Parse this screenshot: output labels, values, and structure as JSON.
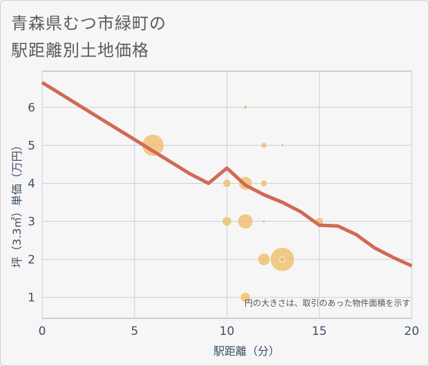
{
  "header": {
    "title": "青森県むつ市緑町の",
    "subtitle": "駅距離別土地価格"
  },
  "chart_data": {
    "type": "scatter",
    "title": "青森県むつ市緑町の駅距離別土地価格",
    "xlabel": "駅距離（分）",
    "ylabel": "坪（3.3㎡）単価（万円）",
    "xlim": [
      0,
      20
    ],
    "ylim": [
      0.45,
      6.95
    ],
    "x_ticks": [
      "0",
      "5",
      "10",
      "15",
      "20"
    ],
    "y_ticks": [
      "1",
      "2",
      "3",
      "4",
      "5",
      "6"
    ],
    "grid": true,
    "note": "円の大きさは、取引のあった物件面積を示す",
    "colors": {
      "bubble": "#efb960",
      "line": "#d06a55"
    },
    "points": [
      {
        "x": 6,
        "y": 5.0,
        "size": 3.2
      },
      {
        "x": 10,
        "y": 4.0,
        "size": 1.2
      },
      {
        "x": 10,
        "y": 3.0,
        "size": 1.4
      },
      {
        "x": 11,
        "y": 6.0,
        "size": 0.6
      },
      {
        "x": 11,
        "y": 4.0,
        "size": 2.0
      },
      {
        "x": 11,
        "y": 3.0,
        "size": 2.2
      },
      {
        "x": 11,
        "y": 1.0,
        "size": 1.5
      },
      {
        "x": 12,
        "y": 5.0,
        "size": 0.9
      },
      {
        "x": 12,
        "y": 4.0,
        "size": 1.0
      },
      {
        "x": 12,
        "y": 3.0,
        "size": 0.5
      },
      {
        "x": 12,
        "y": 2.0,
        "size": 1.8
      },
      {
        "x": 13,
        "y": 5.0,
        "size": 0.5
      },
      {
        "x": 13,
        "y": 2.0,
        "size": 3.5
      },
      {
        "x": 13,
        "y": 2.0,
        "size": 0.8
      },
      {
        "x": 15,
        "y": 3.0,
        "size": 1.2
      }
    ],
    "trend": {
      "x": [
        0,
        1,
        2,
        3,
        4,
        5,
        6,
        7,
        8,
        9,
        10,
        11,
        12,
        13,
        14,
        15,
        16,
        17,
        18,
        19,
        20
      ],
      "y": [
        6.65,
        6.35,
        6.05,
        5.75,
        5.45,
        5.15,
        4.85,
        4.55,
        4.25,
        4.0,
        4.4,
        3.95,
        3.7,
        3.5,
        3.25,
        2.9,
        2.88,
        2.65,
        2.3,
        2.05,
        1.83
      ]
    }
  }
}
